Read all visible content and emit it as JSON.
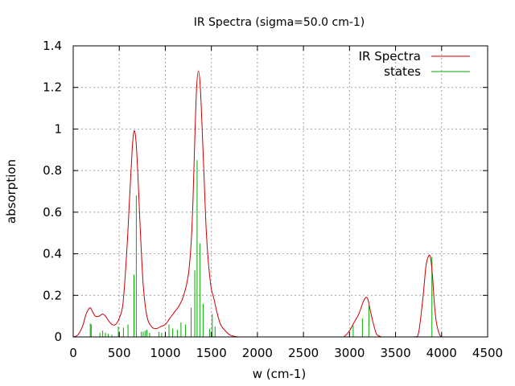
{
  "chart_data": {
    "type": "line",
    "title": "IR Spectra (sigma=50.0 cm-1)",
    "xlabel": "w (cm-1)",
    "ylabel": "absorption",
    "xlim": [
      0,
      4500
    ],
    "ylim": [
      0,
      1.4
    ],
    "x_ticks": [
      0,
      500,
      1000,
      1500,
      2000,
      2500,
      3000,
      3500,
      4000,
      4500
    ],
    "y_ticks": [
      0,
      0.2,
      0.4,
      0.6,
      0.8,
      1.0,
      1.2,
      1.4
    ],
    "y_tick_labels": [
      "0",
      "0.2",
      "0.4",
      "0.6",
      "0.8",
      "1",
      "1.2",
      "1.4"
    ],
    "grid": true,
    "legend_position": "top-right",
    "series": [
      {
        "name": "IR Spectra",
        "kind": "line",
        "color": "#cc0000",
        "x": [
          0,
          50,
          100,
          140,
          180,
          200,
          240,
          280,
          320,
          350,
          380,
          420,
          460,
          500,
          540,
          580,
          610,
          640,
          660,
          680,
          700,
          730,
          760,
          800,
          850,
          900,
          950,
          1000,
          1050,
          1100,
          1150,
          1200,
          1250,
          1280,
          1300,
          1320,
          1340,
          1360,
          1380,
          1400,
          1420,
          1440,
          1460,
          1480,
          1500,
          1530,
          1560,
          1600,
          1650,
          1700,
          1750,
          1800,
          2000,
          2500,
          2900,
          2950,
          3000,
          3050,
          3100,
          3150,
          3180,
          3200,
          3220,
          3250,
          3280,
          3300,
          3350,
          3400,
          3700,
          3750,
          3800,
          3830,
          3860,
          3880,
          3900,
          3920,
          3940,
          3970,
          4000,
          4050,
          4100,
          4500
        ],
        "y": [
          0.0,
          0.01,
          0.05,
          0.11,
          0.14,
          0.13,
          0.1,
          0.1,
          0.11,
          0.1,
          0.08,
          0.06,
          0.06,
          0.09,
          0.16,
          0.4,
          0.65,
          0.9,
          0.99,
          0.95,
          0.8,
          0.5,
          0.25,
          0.1,
          0.05,
          0.04,
          0.05,
          0.06,
          0.09,
          0.12,
          0.15,
          0.2,
          0.3,
          0.45,
          0.65,
          0.95,
          1.2,
          1.28,
          1.2,
          1.0,
          0.78,
          0.55,
          0.4,
          0.3,
          0.23,
          0.18,
          0.12,
          0.06,
          0.03,
          0.01,
          0.003,
          0.0,
          0.0,
          0.0,
          0.0,
          0.005,
          0.03,
          0.07,
          0.11,
          0.17,
          0.19,
          0.18,
          0.14,
          0.08,
          0.03,
          0.01,
          0.0,
          0.0,
          0.0,
          0.02,
          0.2,
          0.34,
          0.39,
          0.38,
          0.3,
          0.17,
          0.08,
          0.02,
          0.0,
          0.0,
          0.0,
          0.0
        ]
      },
      {
        "name": "states",
        "kind": "impulse",
        "color": "#00aa00",
        "x": [
          185,
          195,
          290,
          320,
          350,
          380,
          420,
          490,
          545,
          595,
          660,
          685,
          740,
          760,
          780,
          800,
          830,
          930,
          960,
          1040,
          1080,
          1130,
          1170,
          1220,
          1280,
          1320,
          1345,
          1375,
          1410,
          1480,
          1510,
          1540,
          3040,
          3140,
          3210,
          3895
        ],
        "y": [
          0.065,
          0.06,
          0.02,
          0.03,
          0.02,
          0.015,
          0.01,
          0.05,
          0.045,
          0.06,
          0.3,
          0.68,
          0.025,
          0.025,
          0.03,
          0.035,
          0.02,
          0.025,
          0.02,
          0.06,
          0.04,
          0.035,
          0.07,
          0.06,
          0.14,
          0.32,
          0.85,
          0.45,
          0.16,
          0.04,
          0.11,
          0.05,
          0.055,
          0.09,
          0.15,
          0.385
        ]
      }
    ]
  }
}
